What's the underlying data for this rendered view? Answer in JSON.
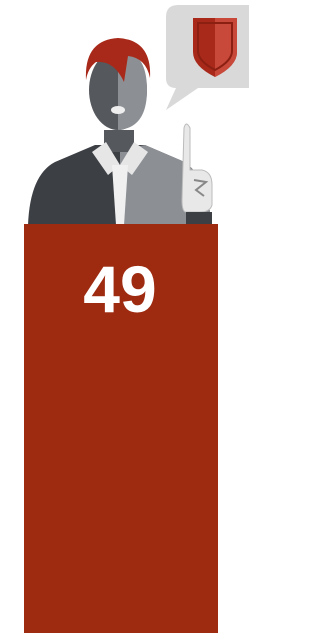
{
  "podium": {
    "number": 49
  }
}
